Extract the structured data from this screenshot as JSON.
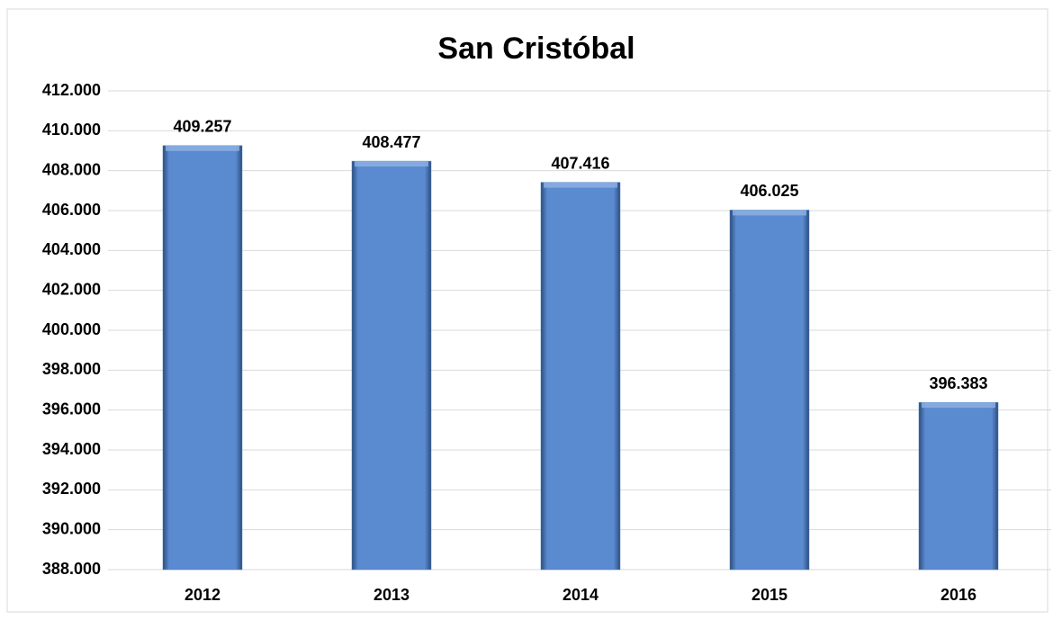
{
  "chart_data": {
    "type": "bar",
    "title": "San Cristóbal",
    "categories": [
      "2012",
      "2013",
      "2014",
      "2015",
      "2016"
    ],
    "values": [
      409257,
      408477,
      407416,
      406025,
      396383
    ],
    "value_labels": [
      "409.257",
      "408.477",
      "407.416",
      "406.025",
      "396.383"
    ],
    "color": "#4f81bd",
    "ylim": [
      388000,
      412000
    ],
    "yticks": [
      {
        "value": 388000,
        "label": "388.000"
      },
      {
        "value": 390000,
        "label": "390.000"
      },
      {
        "value": 392000,
        "label": "392.000"
      },
      {
        "value": 394000,
        "label": "394.000"
      },
      {
        "value": 396000,
        "label": "396.000"
      },
      {
        "value": 398000,
        "label": "398.000"
      },
      {
        "value": 400000,
        "label": "400.000"
      },
      {
        "value": 402000,
        "label": "402.000"
      },
      {
        "value": 404000,
        "label": "404.000"
      },
      {
        "value": 406000,
        "label": "406.000"
      },
      {
        "value": 408000,
        "label": "408.000"
      },
      {
        "value": 410000,
        "label": "410.000"
      },
      {
        "value": 412000,
        "label": "412.000"
      }
    ],
    "grid": true
  }
}
